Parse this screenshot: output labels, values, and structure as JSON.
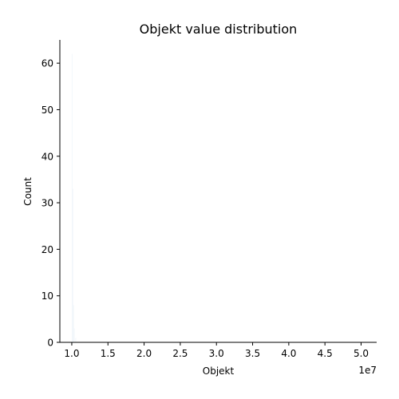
{
  "chart_data": {
    "type": "bar",
    "title": "Objekt value distribution",
    "xlabel": "Objekt",
    "ylabel": "Count",
    "x_offset_label": "1e7",
    "xlim": [
      8.35,
      52.15
    ],
    "ylim": [
      0,
      65
    ],
    "x_ticks": [
      10,
      15,
      20,
      25,
      30,
      35,
      40,
      45,
      50
    ],
    "x_tick_labels": [
      "1.0",
      "1.5",
      "2.0",
      "2.5",
      "3.0",
      "3.5",
      "4.0",
      "4.5",
      "5.0"
    ],
    "y_ticks": [
      0,
      10,
      20,
      30,
      40,
      50,
      60
    ],
    "y_tick_labels": [
      "0",
      "10",
      "20",
      "30",
      "40",
      "50",
      "60"
    ],
    "bin_width": 0.1,
    "bins": [
      {
        "x": 10.0,
        "count": 62
      },
      {
        "x": 10.1,
        "count": 33
      },
      {
        "x": 10.2,
        "count": 8
      },
      {
        "x": 10.3,
        "count": 3
      },
      {
        "x": 10.5,
        "count": 1
      }
    ],
    "grid": false,
    "legend": "none",
    "colors": {
      "bar": "#1f77b4",
      "axis": "#000000"
    }
  }
}
